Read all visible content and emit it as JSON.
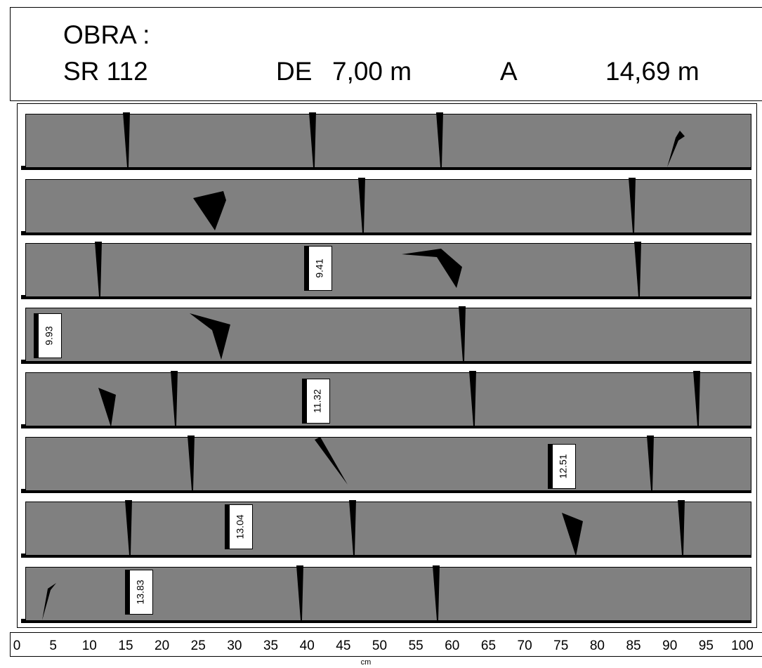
{
  "header": {
    "label": "OBRA :",
    "project": "SR 112",
    "from_label": "DE",
    "from": "7,00 m",
    "to_label": "A",
    "to": "14,69 m"
  },
  "depth_markers": [
    9.41,
    9.93,
    11.32,
    12.51,
    13.04,
    13.83
  ],
  "scale": {
    "ticks": [
      0,
      5,
      10,
      15,
      20,
      25,
      30,
      35,
      40,
      45,
      50,
      55,
      60,
      65,
      70,
      75,
      80,
      85,
      90,
      95,
      100
    ],
    "unit": "cm"
  }
}
